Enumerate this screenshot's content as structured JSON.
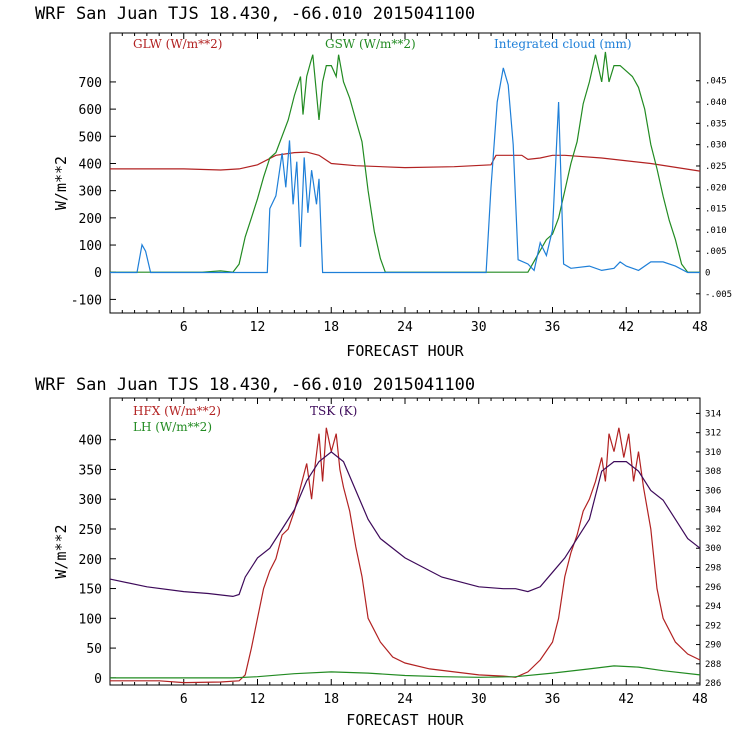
{
  "chart_data": [
    {
      "type": "line",
      "title": "WRF  San Juan TJS  18.430, -66.010  2015041100",
      "xlabel": "FORECAST HOUR",
      "ylabel": "W/m**2",
      "xlim": [
        0,
        48
      ],
      "ylim": [
        -150,
        880
      ],
      "x_ticks": [
        6,
        12,
        18,
        24,
        30,
        36,
        42,
        48
      ],
      "y_ticks": [
        -100,
        0,
        100,
        200,
        300,
        400,
        500,
        600,
        700
      ],
      "right_axis": {
        "ylim": [
          -0.0095,
          0.0562
        ],
        "ticks": [
          -0.005,
          0,
          0.005,
          0.01,
          0.015,
          0.02,
          0.025,
          0.03,
          0.035,
          0.04,
          0.045
        ],
        "tick_labels": [
          "-.005",
          "0",
          ".005",
          ".010",
          ".015",
          ".020",
          ".025",
          ".030",
          ".035",
          ".040",
          ".045"
        ]
      },
      "series": [
        {
          "name": "GLW (W/m**2)",
          "color": "#b22222",
          "axis": "left",
          "points": [
            [
              0,
              380
            ],
            [
              6,
              380
            ],
            [
              9,
              376
            ],
            [
              10.5,
              380
            ],
            [
              12,
              395
            ],
            [
              13.5,
              430
            ],
            [
              15,
              440
            ],
            [
              16,
              442
            ],
            [
              17,
              430
            ],
            [
              18,
              400
            ],
            [
              20,
              392
            ],
            [
              24,
              385
            ],
            [
              28,
              388
            ],
            [
              31,
              395
            ],
            [
              31.4,
              430
            ],
            [
              33.5,
              430
            ],
            [
              34,
              415
            ],
            [
              35,
              420
            ],
            [
              36,
              430
            ],
            [
              37,
              430
            ],
            [
              40,
              420
            ],
            [
              44,
              400
            ],
            [
              48,
              372
            ]
          ]
        },
        {
          "name": "GSW (W/m**2)",
          "color": "#228b22",
          "axis": "left",
          "points": [
            [
              0,
              0
            ],
            [
              7.5,
              0
            ],
            [
              9,
              5
            ],
            [
              10,
              0
            ],
            [
              10.5,
              30
            ],
            [
              11,
              130
            ],
            [
              11.5,
              200
            ],
            [
              12,
              270
            ],
            [
              12.5,
              350
            ],
            [
              13,
              420
            ],
            [
              13.5,
              440
            ],
            [
              14.5,
              560
            ],
            [
              15,
              650
            ],
            [
              15.5,
              720
            ],
            [
              15.7,
              580
            ],
            [
              16,
              720
            ],
            [
              16.3,
              770
            ],
            [
              16.5,
              800
            ],
            [
              17,
              560
            ],
            [
              17.3,
              700
            ],
            [
              17.6,
              760
            ],
            [
              18,
              760
            ],
            [
              18.4,
              720
            ],
            [
              18.6,
              800
            ],
            [
              19,
              700
            ],
            [
              19.5,
              640
            ],
            [
              20,
              560
            ],
            [
              20.5,
              480
            ],
            [
              21,
              300
            ],
            [
              21.5,
              150
            ],
            [
              22,
              50
            ],
            [
              22.4,
              0
            ],
            [
              34,
              0
            ],
            [
              34.5,
              40
            ],
            [
              35,
              80
            ],
            [
              35.5,
              120
            ],
            [
              36,
              140
            ],
            [
              36.5,
              200
            ],
            [
              37,
              300
            ],
            [
              37.5,
              400
            ],
            [
              38,
              480
            ],
            [
              38.5,
              620
            ],
            [
              39,
              700
            ],
            [
              39.5,
              800
            ],
            [
              40,
              700
            ],
            [
              40.3,
              810
            ],
            [
              40.6,
              700
            ],
            [
              41,
              760
            ],
            [
              41.5,
              760
            ],
            [
              42,
              740
            ],
            [
              42.5,
              720
            ],
            [
              43,
              680
            ],
            [
              43.5,
              600
            ],
            [
              44,
              470
            ],
            [
              44.5,
              380
            ],
            [
              45,
              280
            ],
            [
              45.5,
              190
            ],
            [
              46,
              120
            ],
            [
              46.5,
              30
            ],
            [
              47,
              0
            ],
            [
              48,
              0
            ]
          ]
        },
        {
          "name": "Integrated cloud (mm)",
          "color": "#1e7fd8",
          "axis": "right",
          "points": [
            [
              0,
              0
            ],
            [
              2.2,
              0
            ],
            [
              2.6,
              0.0065
            ],
            [
              2.9,
              0.005
            ],
            [
              3.3,
              0
            ],
            [
              12.8,
              0
            ],
            [
              13,
              0.015
            ],
            [
              13.5,
              0.018
            ],
            [
              14,
              0.028
            ],
            [
              14.3,
              0.02
            ],
            [
              14.6,
              0.031
            ],
            [
              14.9,
              0.016
            ],
            [
              15.2,
              0.026
            ],
            [
              15.5,
              0.006
            ],
            [
              15.8,
              0.027
            ],
            [
              16.1,
              0.014
            ],
            [
              16.4,
              0.024
            ],
            [
              16.8,
              0.016
            ],
            [
              17,
              0.022
            ],
            [
              17.3,
              0
            ],
            [
              30.6,
              0
            ],
            [
              31,
              0.02
            ],
            [
              31.5,
              0.04
            ],
            [
              32,
              0.048
            ],
            [
              32.4,
              0.044
            ],
            [
              32.8,
              0.03
            ],
            [
              33.2,
              0.003
            ],
            [
              34,
              0.002
            ],
            [
              34.5,
              0.0005
            ],
            [
              35,
              0.007
            ],
            [
              35.5,
              0.004
            ],
            [
              36,
              0.01
            ],
            [
              36.5,
              0.04
            ],
            [
              36.9,
              0.002
            ],
            [
              37.5,
              0.001
            ],
            [
              39,
              0.0015
            ],
            [
              40,
              0.0005
            ],
            [
              41,
              0.001
            ],
            [
              41.5,
              0.0025
            ],
            [
              42,
              0.0015
            ],
            [
              43,
              0.0005
            ],
            [
              44,
              0.0025
            ],
            [
              45,
              0.0025
            ],
            [
              46,
              0.0015
            ],
            [
              47,
              0
            ],
            [
              48,
              0
            ]
          ]
        }
      ]
    },
    {
      "type": "line",
      "title": "WRF  San Juan TJS  18.430, -66.010  2015041100",
      "xlabel": "FORECAST HOUR",
      "ylabel": "W/m**2",
      "xlim": [
        0,
        48
      ],
      "ylim": [
        -12,
        470
      ],
      "x_ticks": [
        6,
        12,
        18,
        24,
        30,
        36,
        42,
        48
      ],
      "y_ticks": [
        0,
        50,
        100,
        150,
        200,
        250,
        300,
        350,
        400
      ],
      "right_axis": {
        "ylim": [
          285.8,
          315.6
        ],
        "ticks": [
          286,
          288,
          290,
          292,
          294,
          296,
          298,
          300,
          302,
          304,
          306,
          308,
          310,
          312,
          314
        ],
        "tick_labels": [
          "286",
          "288",
          "290",
          "292",
          "294",
          "296",
          "298",
          "300",
          "302",
          "304",
          "306",
          "308",
          "310",
          "312",
          "314"
        ]
      },
      "series": [
        {
          "name": "HFX (W/m**2)",
          "color": "#b22222",
          "axis": "left",
          "points": [
            [
              0,
              -5
            ],
            [
              4,
              -5
            ],
            [
              6,
              -8
            ],
            [
              9,
              -7
            ],
            [
              10.5,
              -5
            ],
            [
              11,
              5
            ],
            [
              11.5,
              50
            ],
            [
              12,
              100
            ],
            [
              12.5,
              150
            ],
            [
              13,
              180
            ],
            [
              13.5,
              200
            ],
            [
              14,
              240
            ],
            [
              14.5,
              250
            ],
            [
              15,
              280
            ],
            [
              15.5,
              320
            ],
            [
              16,
              360
            ],
            [
              16.4,
              300
            ],
            [
              16.7,
              360
            ],
            [
              17,
              410
            ],
            [
              17.3,
              330
            ],
            [
              17.6,
              420
            ],
            [
              18,
              380
            ],
            [
              18.4,
              410
            ],
            [
              18.7,
              350
            ],
            [
              19,
              320
            ],
            [
              19.5,
              280
            ],
            [
              20,
              220
            ],
            [
              20.5,
              170
            ],
            [
              21,
              100
            ],
            [
              22,
              60
            ],
            [
              23,
              35
            ],
            [
              24,
              25
            ],
            [
              26,
              15
            ],
            [
              28,
              10
            ],
            [
              30,
              5
            ],
            [
              32,
              3
            ],
            [
              33,
              1
            ],
            [
              34,
              10
            ],
            [
              35,
              30
            ],
            [
              36,
              60
            ],
            [
              36.5,
              100
            ],
            [
              37,
              170
            ],
            [
              37.5,
              210
            ],
            [
              38,
              240
            ],
            [
              38.5,
              280
            ],
            [
              39,
              300
            ],
            [
              39.5,
              330
            ],
            [
              40,
              370
            ],
            [
              40.3,
              330
            ],
            [
              40.6,
              410
            ],
            [
              41,
              380
            ],
            [
              41.4,
              420
            ],
            [
              41.8,
              370
            ],
            [
              42.2,
              410
            ],
            [
              42.6,
              330
            ],
            [
              43,
              380
            ],
            [
              43.4,
              320
            ],
            [
              44,
              250
            ],
            [
              44.5,
              150
            ],
            [
              45,
              100
            ],
            [
              46,
              60
            ],
            [
              47,
              40
            ],
            [
              48,
              30
            ]
          ]
        },
        {
          "name": "LH  (W/m**2)",
          "color": "#228b22",
          "axis": "left",
          "points": [
            [
              0,
              0
            ],
            [
              10,
              0
            ],
            [
              12,
              2
            ],
            [
              15,
              7
            ],
            [
              18,
              10
            ],
            [
              21,
              8
            ],
            [
              24,
              4
            ],
            [
              27,
              2
            ],
            [
              30,
              1
            ],
            [
              33,
              2
            ],
            [
              36,
              8
            ],
            [
              39,
              15
            ],
            [
              41,
              20
            ],
            [
              43,
              18
            ],
            [
              45,
              12
            ],
            [
              48,
              5
            ]
          ]
        },
        {
          "name": "TSK (K)",
          "color": "#3d0a5a",
          "axis": "right",
          "points": [
            [
              0,
              296.8
            ],
            [
              3,
              296
            ],
            [
              6,
              295.5
            ],
            [
              8,
              295.3
            ],
            [
              10,
              295
            ],
            [
              10.5,
              295.2
            ],
            [
              11,
              297
            ],
            [
              12,
              299
            ],
            [
              13,
              300
            ],
            [
              14,
              302
            ],
            [
              15,
              304
            ],
            [
              16,
              307
            ],
            [
              17,
              309
            ],
            [
              18,
              310
            ],
            [
              19,
              309
            ],
            [
              20,
              306
            ],
            [
              21,
              303
            ],
            [
              22,
              301
            ],
            [
              24,
              299
            ],
            [
              27,
              297
            ],
            [
              30,
              296
            ],
            [
              32,
              295.8
            ],
            [
              33,
              295.8
            ],
            [
              34,
              295.5
            ],
            [
              35,
              296
            ],
            [
              36,
              297.5
            ],
            [
              37,
              299
            ],
            [
              38,
              301
            ],
            [
              39,
              303
            ],
            [
              40,
              308
            ],
            [
              41,
              309
            ],
            [
              42,
              309
            ],
            [
              43,
              308
            ],
            [
              44,
              306
            ],
            [
              45,
              305
            ],
            [
              46,
              303
            ],
            [
              47,
              301
            ],
            [
              48,
              300
            ]
          ]
        }
      ]
    }
  ]
}
